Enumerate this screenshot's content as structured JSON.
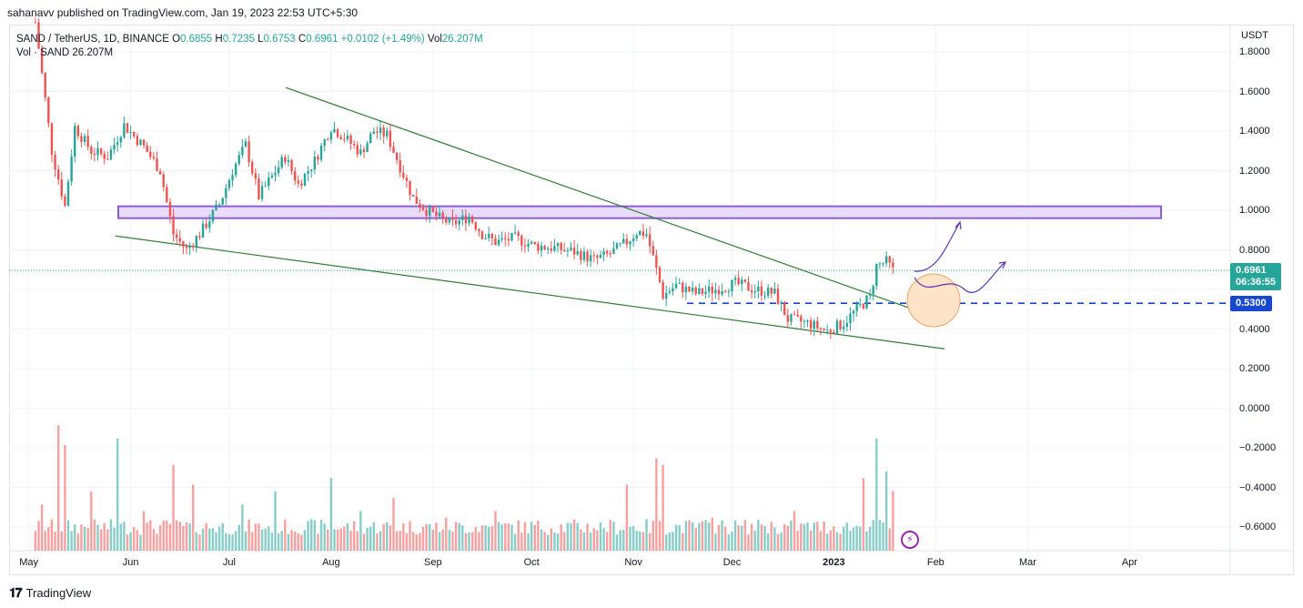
{
  "header": {
    "published": "sahanavv published on TradingView.com, Jan 19, 2023 22:53 UTC+5:30"
  },
  "legend": {
    "symbol": "SAND / TetherUS, 1D, BINANCE",
    "o_label": "O",
    "o": "0.6855",
    "h_label": "H",
    "h": "0.7235",
    "l_label": "L",
    "l": "0.6753",
    "c_label": "C",
    "c": "0.6961",
    "change": "+0.0102 (+1.49%)",
    "vol_label": "Vol",
    "vol": "26.207M",
    "vol_series": "Vol · SAND",
    "vol_series_value": "26.207M"
  },
  "axis": {
    "unit": "USDT",
    "y_ticks": [
      "1.8000",
      "1.6000",
      "1.4000",
      "1.2000",
      "1.0000",
      "0.8000",
      "0.4000",
      "0.2000",
      "0.0000",
      "−0.2000",
      "−0.4000",
      "−0.6000"
    ],
    "x_ticks": [
      "May",
      "Jun",
      "Jul",
      "Aug",
      "Sep",
      "Oct",
      "Nov",
      "Dec",
      "2023",
      "Feb",
      "Mar",
      "Apr"
    ]
  },
  "price_tag": {
    "price": "0.6961",
    "countdown": "06:36:55"
  },
  "level_tag": {
    "value": "0.5300"
  },
  "footer": {
    "brand": "TradingView"
  },
  "colors": {
    "up": "#26a69a",
    "down": "#ef5350",
    "trendline": "#2e7d32",
    "zone_border": "#8e5cd9",
    "zone_fill": "#e9dcfb",
    "level": "#1848cc",
    "circle_fill": "#fde3c8"
  },
  "chart_data": {
    "type": "candlestick",
    "title": "SAND / TetherUS, 1D, BINANCE",
    "ylim": [
      -0.65,
      1.85
    ],
    "current_price": 0.6961,
    "horizontal_level": 0.53,
    "resistance_zone": [
      0.96,
      1.02
    ],
    "x_range": [
      "2022-04-25",
      "2023-04-20"
    ],
    "series": [
      {
        "name": "Price (approx. daily close)",
        "points": [
          [
            "2022-05-03",
            1.95
          ],
          [
            "2022-05-08",
            1.3
          ],
          [
            "2022-05-12",
            1.02
          ],
          [
            "2022-05-15",
            1.42
          ],
          [
            "2022-05-20",
            1.3
          ],
          [
            "2022-05-25",
            1.27
          ],
          [
            "2022-05-30",
            1.43
          ],
          [
            "2022-06-05",
            1.32
          ],
          [
            "2022-06-10",
            1.2
          ],
          [
            "2022-06-14",
            0.88
          ],
          [
            "2022-06-18",
            0.8
          ],
          [
            "2022-06-22",
            0.88
          ],
          [
            "2022-06-28",
            1.03
          ],
          [
            "2022-07-02",
            1.2
          ],
          [
            "2022-07-06",
            1.33
          ],
          [
            "2022-07-10",
            1.07
          ],
          [
            "2022-07-14",
            1.17
          ],
          [
            "2022-07-18",
            1.27
          ],
          [
            "2022-07-22",
            1.13
          ],
          [
            "2022-07-27",
            1.25
          ],
          [
            "2022-08-01",
            1.42
          ],
          [
            "2022-08-05",
            1.37
          ],
          [
            "2022-08-10",
            1.29
          ],
          [
            "2022-08-14",
            1.4
          ],
          [
            "2022-08-18",
            1.38
          ],
          [
            "2022-08-22",
            1.22
          ],
          [
            "2022-08-26",
            1.06
          ],
          [
            "2022-08-30",
            1.0
          ],
          [
            "2022-09-03",
            0.96
          ],
          [
            "2022-09-07",
            0.93
          ],
          [
            "2022-09-12",
            0.97
          ],
          [
            "2022-09-16",
            0.88
          ],
          [
            "2022-09-20",
            0.84
          ],
          [
            "2022-09-26",
            0.86
          ],
          [
            "2022-10-02",
            0.82
          ],
          [
            "2022-10-08",
            0.81
          ],
          [
            "2022-10-14",
            0.79
          ],
          [
            "2022-10-20",
            0.75
          ],
          [
            "2022-10-25",
            0.78
          ],
          [
            "2022-10-30",
            0.84
          ],
          [
            "2022-11-02",
            0.89
          ],
          [
            "2022-11-05",
            0.88
          ],
          [
            "2022-11-08",
            0.7
          ],
          [
            "2022-11-10",
            0.57
          ],
          [
            "2022-11-14",
            0.62
          ],
          [
            "2022-11-20",
            0.58
          ],
          [
            "2022-11-26",
            0.6
          ],
          [
            "2022-12-02",
            0.63
          ],
          [
            "2022-12-08",
            0.6
          ],
          [
            "2022-12-14",
            0.58
          ],
          [
            "2022-12-18",
            0.45
          ],
          [
            "2022-12-24",
            0.43
          ],
          [
            "2022-12-30",
            0.39
          ],
          [
            "2023-01-04",
            0.43
          ],
          [
            "2023-01-08",
            0.5
          ],
          [
            "2023-01-12",
            0.56
          ],
          [
            "2023-01-14",
            0.72
          ],
          [
            "2023-01-17",
            0.74
          ],
          [
            "2023-01-19",
            0.6961
          ]
        ]
      },
      {
        "name": "Volume (relative)",
        "points": [
          [
            "2022-05-05",
            0.35
          ],
          [
            "2022-05-10",
            0.95
          ],
          [
            "2022-05-12",
            0.8
          ],
          [
            "2022-05-20",
            0.45
          ],
          [
            "2022-05-28",
            0.85
          ],
          [
            "2022-06-05",
            0.3
          ],
          [
            "2022-06-14",
            0.65
          ],
          [
            "2022-06-20",
            0.5
          ],
          [
            "2022-07-05",
            0.35
          ],
          [
            "2022-07-15",
            0.45
          ],
          [
            "2022-08-01",
            0.55
          ],
          [
            "2022-08-10",
            0.3
          ],
          [
            "2022-08-20",
            0.4
          ],
          [
            "2022-09-05",
            0.25
          ],
          [
            "2022-09-20",
            0.3
          ],
          [
            "2022-10-10",
            0.2
          ],
          [
            "2022-10-30",
            0.5
          ],
          [
            "2022-11-08",
            0.7
          ],
          [
            "2022-11-10",
            0.65
          ],
          [
            "2022-11-25",
            0.25
          ],
          [
            "2022-12-10",
            0.2
          ],
          [
            "2022-12-20",
            0.3
          ],
          [
            "2023-01-10",
            0.55
          ],
          [
            "2023-01-14",
            0.85
          ],
          [
            "2023-01-17",
            0.6
          ],
          [
            "2023-01-19",
            0.45
          ]
        ]
      }
    ]
  }
}
